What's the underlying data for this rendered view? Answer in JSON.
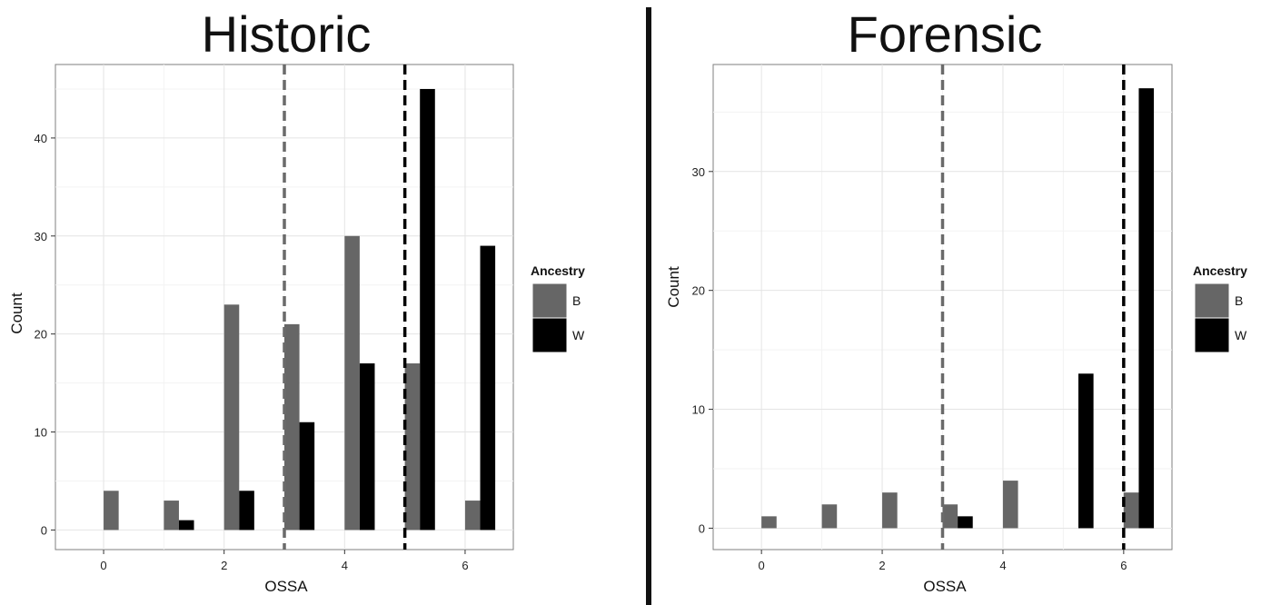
{
  "chart_data": [
    {
      "type": "bar",
      "title": "Historic",
      "xlabel": "OSSA",
      "ylabel": "Count",
      "xlim": [
        -0.8,
        6.8
      ],
      "ylim": [
        -2,
        47.5
      ],
      "x_ticks": [
        0,
        2,
        4,
        6
      ],
      "y_ticks": [
        0,
        10,
        20,
        30,
        40
      ],
      "grid": true,
      "legend": {
        "title": "Ancestry",
        "position": "right"
      },
      "categories": [
        0,
        1,
        2,
        3,
        4,
        5,
        6
      ],
      "series": [
        {
          "name": "B",
          "color": "#666666",
          "values": [
            4,
            3,
            23,
            21,
            30,
            17,
            3
          ]
        },
        {
          "name": "W",
          "color": "#000000",
          "values": [
            0,
            1,
            4,
            11,
            17,
            45,
            29
          ]
        }
      ],
      "reference_lines": [
        {
          "x": 3,
          "color": "#6a6a6a"
        },
        {
          "x": 5,
          "color": "#000000"
        }
      ]
    },
    {
      "type": "bar",
      "title": "Forensic",
      "xlabel": "OSSA",
      "ylabel": "Count",
      "xlim": [
        -0.8,
        6.8
      ],
      "ylim": [
        -1.8,
        39
      ],
      "x_ticks": [
        0,
        2,
        4,
        6
      ],
      "y_ticks": [
        0,
        10,
        20,
        30
      ],
      "grid": true,
      "legend": {
        "title": "Ancestry",
        "position": "right"
      },
      "categories": [
        0,
        1,
        2,
        3,
        4,
        5,
        6
      ],
      "series": [
        {
          "name": "B",
          "color": "#666666",
          "values": [
            1,
            2,
            3,
            2,
            4,
            0,
            3
          ]
        },
        {
          "name": "W",
          "color": "#000000",
          "values": [
            0,
            0,
            0,
            1,
            0,
            13,
            37
          ]
        }
      ],
      "reference_lines": [
        {
          "x": 3,
          "color": "#6a6a6a"
        },
        {
          "x": 6,
          "color": "#000000"
        }
      ]
    }
  ]
}
